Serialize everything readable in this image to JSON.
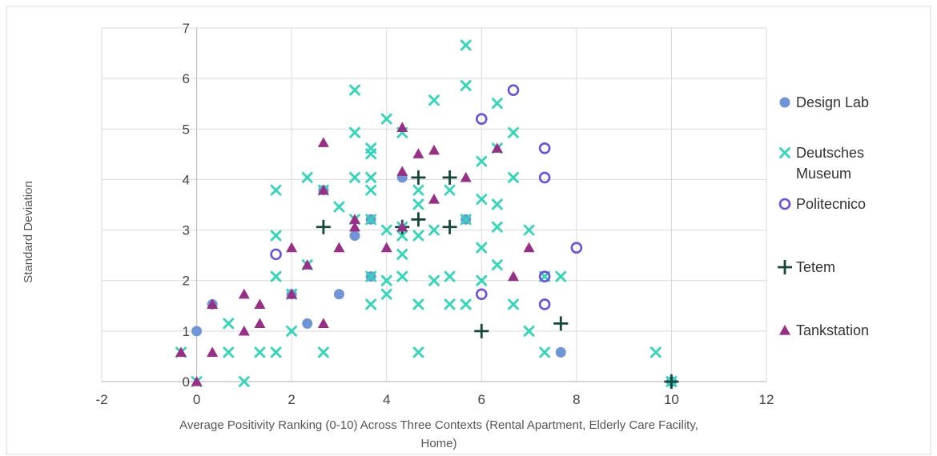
{
  "chart_data": {
    "type": "scatter",
    "title": "",
    "xlabel_lines": [
      "Average Positivity Ranking (0-10) Across Three Contexts (Rental Apartment, Elderly Care Facility,",
      "Home)"
    ],
    "ylabel": "Standard Deviation",
    "xlim": [
      -2,
      12
    ],
    "ylim": [
      0,
      7
    ],
    "x_ticks": [
      "-2",
      "0",
      "2",
      "4",
      "6",
      "8",
      "10",
      "12"
    ],
    "y_ticks": [
      "0",
      "1",
      "2",
      "3",
      "4",
      "5",
      "6",
      "7"
    ],
    "grid": "horizontal and vertical",
    "legend_position": "right",
    "series": [
      {
        "name": "Design Lab",
        "marker": "filled-circle",
        "color": "#6f95d6",
        "points": [
          [
            0,
            1.0
          ],
          [
            0.33,
            1.53
          ],
          [
            2.0,
            1.73
          ],
          [
            2.33,
            1.15
          ],
          [
            2.67,
            3.79
          ],
          [
            3.0,
            1.73
          ],
          [
            3.33,
            2.89
          ],
          [
            3.67,
            3.21
          ],
          [
            3.67,
            2.08
          ],
          [
            4.33,
            4.04
          ],
          [
            5.67,
            3.21
          ],
          [
            7.67,
            0.58
          ],
          [
            10.0,
            0.0
          ]
        ]
      },
      {
        "name": "Deutsches Museum",
        "legend_lines": [
          "Deutsches",
          "Museum"
        ],
        "marker": "x",
        "color": "#2fd6b8",
        "points": [
          [
            -0.33,
            0.58
          ],
          [
            0,
            0.0
          ],
          [
            0.67,
            1.15
          ],
          [
            0.67,
            0.58
          ],
          [
            1.0,
            0.0
          ],
          [
            1.33,
            0.58
          ],
          [
            1.67,
            0.58
          ],
          [
            1.67,
            2.08
          ],
          [
            1.67,
            2.89
          ],
          [
            1.67,
            3.79
          ],
          [
            2.0,
            1.0
          ],
          [
            2.0,
            1.73
          ],
          [
            2.33,
            2.31
          ],
          [
            2.33,
            4.04
          ],
          [
            2.67,
            0.58
          ],
          [
            2.67,
            3.79
          ],
          [
            3.0,
            3.46
          ],
          [
            3.33,
            3.21
          ],
          [
            3.33,
            4.04
          ],
          [
            3.33,
            4.93
          ],
          [
            3.33,
            5.77
          ],
          [
            3.67,
            1.53
          ],
          [
            3.67,
            2.08
          ],
          [
            3.67,
            3.21
          ],
          [
            3.67,
            3.79
          ],
          [
            3.67,
            4.04
          ],
          [
            3.67,
            4.51
          ],
          [
            3.67,
            4.62
          ],
          [
            4.0,
            1.73
          ],
          [
            4.0,
            2.0
          ],
          [
            4.0,
            3.0
          ],
          [
            4.0,
            5.2
          ],
          [
            4.33,
            2.08
          ],
          [
            4.33,
            2.52
          ],
          [
            4.33,
            2.89
          ],
          [
            4.33,
            3.06
          ],
          [
            4.33,
            4.93
          ],
          [
            4.67,
            0.58
          ],
          [
            4.67,
            1.53
          ],
          [
            4.67,
            2.89
          ],
          [
            4.67,
            3.51
          ],
          [
            4.67,
            3.79
          ],
          [
            5.0,
            2.0
          ],
          [
            5.0,
            3.0
          ],
          [
            5.0,
            5.57
          ],
          [
            5.33,
            1.53
          ],
          [
            5.33,
            2.08
          ],
          [
            5.33,
            3.79
          ],
          [
            5.67,
            1.53
          ],
          [
            5.67,
            3.21
          ],
          [
            5.67,
            5.86
          ],
          [
            5.67,
            6.66
          ],
          [
            6.0,
            2.0
          ],
          [
            6.0,
            2.65
          ],
          [
            6.0,
            3.61
          ],
          [
            6.0,
            4.36
          ],
          [
            6.33,
            2.31
          ],
          [
            6.33,
            3.06
          ],
          [
            6.33,
            3.51
          ],
          [
            6.33,
            4.62
          ],
          [
            6.33,
            5.51
          ],
          [
            6.67,
            1.53
          ],
          [
            6.67,
            4.04
          ],
          [
            6.67,
            4.93
          ],
          [
            7.0,
            1.0
          ],
          [
            7.0,
            3.0
          ],
          [
            7.33,
            0.58
          ],
          [
            7.33,
            2.08
          ],
          [
            7.67,
            2.08
          ],
          [
            9.67,
            0.58
          ],
          [
            10.0,
            0.0
          ]
        ]
      },
      {
        "name": "Politecnico",
        "marker": "open-circle",
        "color": "#6a4fe0",
        "points": [
          [
            1.67,
            2.52
          ],
          [
            6.0,
            1.73
          ],
          [
            6.0,
            5.2
          ],
          [
            6.67,
            5.77
          ],
          [
            7.33,
            1.53
          ],
          [
            7.33,
            2.08
          ],
          [
            7.33,
            4.04
          ],
          [
            7.33,
            4.62
          ],
          [
            8.0,
            2.65
          ]
        ]
      },
      {
        "name": "Tetem",
        "marker": "plus",
        "color": "#14473a",
        "points": [
          [
            2.67,
            3.06
          ],
          [
            4.33,
            3.06
          ],
          [
            4.67,
            4.04
          ],
          [
            4.67,
            3.21
          ],
          [
            5.33,
            4.04
          ],
          [
            5.33,
            3.06
          ],
          [
            6.0,
            1.0
          ],
          [
            7.67,
            1.15
          ],
          [
            10.0,
            0.0
          ]
        ]
      },
      {
        "name": "Tankstation",
        "marker": "triangle",
        "color": "#982f86",
        "points": [
          [
            -0.33,
            0.58
          ],
          [
            0,
            0.0
          ],
          [
            0.33,
            0.58
          ],
          [
            0.33,
            1.53
          ],
          [
            1.0,
            1.0
          ],
          [
            1.0,
            1.73
          ],
          [
            1.33,
            1.15
          ],
          [
            1.33,
            1.53
          ],
          [
            2.0,
            2.65
          ],
          [
            2.0,
            1.73
          ],
          [
            2.33,
            2.31
          ],
          [
            2.67,
            1.15
          ],
          [
            2.67,
            3.79
          ],
          [
            2.67,
            4.73
          ],
          [
            3.0,
            2.65
          ],
          [
            3.33,
            3.06
          ],
          [
            3.33,
            3.21
          ],
          [
            4.0,
            2.65
          ],
          [
            4.33,
            3.06
          ],
          [
            4.33,
            4.16
          ],
          [
            4.33,
            5.03
          ],
          [
            4.67,
            4.51
          ],
          [
            5.0,
            3.61
          ],
          [
            5.0,
            4.58
          ],
          [
            5.67,
            4.04
          ],
          [
            6.33,
            4.62
          ],
          [
            6.67,
            2.08
          ],
          [
            7.0,
            2.65
          ]
        ]
      }
    ]
  }
}
